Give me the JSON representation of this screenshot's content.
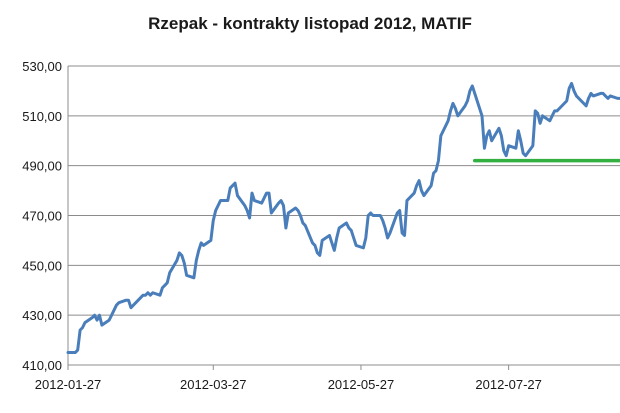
{
  "chart_data": {
    "type": "line",
    "title": "Rzepak - kontrakty listopad 2012, MATIF",
    "xlabel": "",
    "ylabel": "",
    "ylim": [
      410,
      530
    ],
    "y_ticks": [
      "530,00",
      "510,00",
      "490,00",
      "470,00",
      "450,00",
      "430,00",
      "410,00"
    ],
    "y_tick_values": [
      530,
      510,
      490,
      470,
      450,
      430,
      410
    ],
    "x_ticks": [
      "2012-01-27",
      "2012-03-27",
      "2012-05-27",
      "2012-07-27"
    ],
    "x_tick_values": [
      "2012-01-27",
      "2012-03-27",
      "2012-05-27",
      "2012-07-27"
    ],
    "x_range": [
      "2012-01-27",
      "2012-09-11"
    ],
    "grid": true,
    "legend": "none",
    "series": [
      {
        "color": "#4a7ebb",
        "points": [
          [
            "2012-01-27",
            415
          ],
          [
            "2012-01-30",
            415
          ],
          [
            "2012-01-31",
            416
          ],
          [
            "2012-02-01",
            424
          ],
          [
            "2012-02-02",
            425
          ],
          [
            "2012-02-03",
            427
          ],
          [
            "2012-02-06",
            429
          ],
          [
            "2012-02-07",
            430
          ],
          [
            "2012-02-08",
            428
          ],
          [
            "2012-02-09",
            430
          ],
          [
            "2012-02-10",
            426
          ],
          [
            "2012-02-13",
            428
          ],
          [
            "2012-02-14",
            430
          ],
          [
            "2012-02-15",
            432
          ],
          [
            "2012-02-16",
            434
          ],
          [
            "2012-02-17",
            435
          ],
          [
            "2012-02-20",
            436
          ],
          [
            "2012-02-21",
            436
          ],
          [
            "2012-02-22",
            433
          ],
          [
            "2012-02-23",
            434
          ],
          [
            "2012-02-24",
            435
          ],
          [
            "2012-02-27",
            438
          ],
          [
            "2012-02-28",
            438
          ],
          [
            "2012-02-29",
            439
          ],
          [
            "2012-03-01",
            438
          ],
          [
            "2012-03-02",
            439
          ],
          [
            "2012-03-05",
            438
          ],
          [
            "2012-03-06",
            441
          ],
          [
            "2012-03-07",
            442
          ],
          [
            "2012-03-08",
            443
          ],
          [
            "2012-03-09",
            447
          ],
          [
            "2012-03-12",
            452
          ],
          [
            "2012-03-13",
            455
          ],
          [
            "2012-03-14",
            454
          ],
          [
            "2012-03-15",
            451
          ],
          [
            "2012-03-16",
            446
          ],
          [
            "2012-03-19",
            445
          ],
          [
            "2012-03-20",
            452
          ],
          [
            "2012-03-21",
            456
          ],
          [
            "2012-03-22",
            459
          ],
          [
            "2012-03-23",
            458
          ],
          [
            "2012-03-26",
            460
          ],
          [
            "2012-03-27",
            468
          ],
          [
            "2012-03-28",
            472
          ],
          [
            "2012-03-29",
            474
          ],
          [
            "2012-03-30",
            476
          ],
          [
            "2012-04-02",
            476
          ],
          [
            "2012-04-03",
            481
          ],
          [
            "2012-04-04",
            482
          ],
          [
            "2012-04-05",
            483
          ],
          [
            "2012-04-06",
            478
          ],
          [
            "2012-04-09",
            474
          ],
          [
            "2012-04-10",
            472
          ],
          [
            "2012-04-11",
            469
          ],
          [
            "2012-04-12",
            479
          ],
          [
            "2012-04-13",
            476
          ],
          [
            "2012-04-16",
            475
          ],
          [
            "2012-04-17",
            477
          ],
          [
            "2012-04-18",
            479
          ],
          [
            "2012-04-19",
            479
          ],
          [
            "2012-04-20",
            471
          ],
          [
            "2012-04-23",
            475
          ],
          [
            "2012-04-24",
            476
          ],
          [
            "2012-04-25",
            474
          ],
          [
            "2012-04-26",
            465
          ],
          [
            "2012-04-27",
            471
          ],
          [
            "2012-04-30",
            473
          ],
          [
            "2012-05-01",
            472
          ],
          [
            "2012-05-02",
            470
          ],
          [
            "2012-05-03",
            467
          ],
          [
            "2012-05-04",
            466
          ],
          [
            "2012-05-07",
            459
          ],
          [
            "2012-05-08",
            458
          ],
          [
            "2012-05-09",
            455
          ],
          [
            "2012-05-10",
            454
          ],
          [
            "2012-05-11",
            460
          ],
          [
            "2012-05-14",
            462
          ],
          [
            "2012-05-15",
            459
          ],
          [
            "2012-05-16",
            456
          ],
          [
            "2012-05-17",
            461
          ],
          [
            "2012-05-18",
            465
          ],
          [
            "2012-05-21",
            467
          ],
          [
            "2012-05-22",
            465
          ],
          [
            "2012-05-23",
            464
          ],
          [
            "2012-05-24",
            461
          ],
          [
            "2012-05-25",
            458
          ],
          [
            "2012-05-28",
            457
          ],
          [
            "2012-05-29",
            461
          ],
          [
            "2012-05-30",
            470
          ],
          [
            "2012-05-31",
            471
          ],
          [
            "2012-06-01",
            470
          ],
          [
            "2012-06-04",
            470
          ],
          [
            "2012-06-05",
            468
          ],
          [
            "2012-06-06",
            465
          ],
          [
            "2012-06-07",
            461
          ],
          [
            "2012-06-08",
            463
          ],
          [
            "2012-06-11",
            471
          ],
          [
            "2012-06-12",
            472
          ],
          [
            "2012-06-13",
            463
          ],
          [
            "2012-06-14",
            462
          ],
          [
            "2012-06-15",
            476
          ],
          [
            "2012-06-18",
            479
          ],
          [
            "2012-06-19",
            482
          ],
          [
            "2012-06-20",
            484
          ],
          [
            "2012-06-21",
            480
          ],
          [
            "2012-06-22",
            478
          ],
          [
            "2012-06-25",
            482
          ],
          [
            "2012-06-26",
            487
          ],
          [
            "2012-06-27",
            488
          ],
          [
            "2012-06-28",
            492
          ],
          [
            "2012-06-29",
            502
          ],
          [
            "2012-07-02",
            508
          ],
          [
            "2012-07-03",
            512
          ],
          [
            "2012-07-04",
            515
          ],
          [
            "2012-07-05",
            513
          ],
          [
            "2012-07-06",
            510
          ],
          [
            "2012-07-09",
            514
          ],
          [
            "2012-07-10",
            516
          ],
          [
            "2012-07-11",
            520
          ],
          [
            "2012-07-12",
            522
          ],
          [
            "2012-07-13",
            519
          ],
          [
            "2012-07-16",
            510
          ],
          [
            "2012-07-17",
            497
          ],
          [
            "2012-07-18",
            502
          ],
          [
            "2012-07-19",
            504
          ],
          [
            "2012-07-20",
            500
          ],
          [
            "2012-07-23",
            505
          ],
          [
            "2012-07-24",
            502
          ],
          [
            "2012-07-25",
            496
          ],
          [
            "2012-07-26",
            494
          ],
          [
            "2012-07-27",
            498
          ],
          [
            "2012-07-30",
            497
          ],
          [
            "2012-07-31",
            504
          ],
          [
            "2012-08-01",
            500
          ],
          [
            "2012-08-02",
            495
          ],
          [
            "2012-08-03",
            494
          ],
          [
            "2012-08-06",
            498
          ],
          [
            "2012-08-07",
            512
          ],
          [
            "2012-08-08",
            511
          ],
          [
            "2012-08-09",
            507
          ],
          [
            "2012-08-10",
            510
          ],
          [
            "2012-08-13",
            508
          ],
          [
            "2012-08-14",
            510
          ],
          [
            "2012-08-15",
            512
          ],
          [
            "2012-08-16",
            512
          ],
          [
            "2012-08-17",
            513
          ],
          [
            "2012-08-20",
            516
          ],
          [
            "2012-08-21",
            521
          ],
          [
            "2012-08-22",
            523
          ],
          [
            "2012-08-23",
            520
          ],
          [
            "2012-08-24",
            518
          ],
          [
            "2012-08-27",
            515
          ],
          [
            "2012-08-28",
            514
          ],
          [
            "2012-08-29",
            517
          ],
          [
            "2012-08-30",
            519
          ],
          [
            "2012-08-31",
            518
          ],
          [
            "2012-09-03",
            519
          ],
          [
            "2012-09-04",
            519
          ],
          [
            "2012-09-05",
            518
          ],
          [
            "2012-09-06",
            517
          ],
          [
            "2012-09-07",
            518
          ],
          [
            "2012-09-10",
            517
          ],
          [
            "2012-09-11",
            517
          ]
        ]
      },
      {
        "color": "#33b040",
        "points": [
          [
            "2012-07-13",
            492
          ],
          [
            "2012-09-11",
            492
          ]
        ]
      }
    ]
  }
}
